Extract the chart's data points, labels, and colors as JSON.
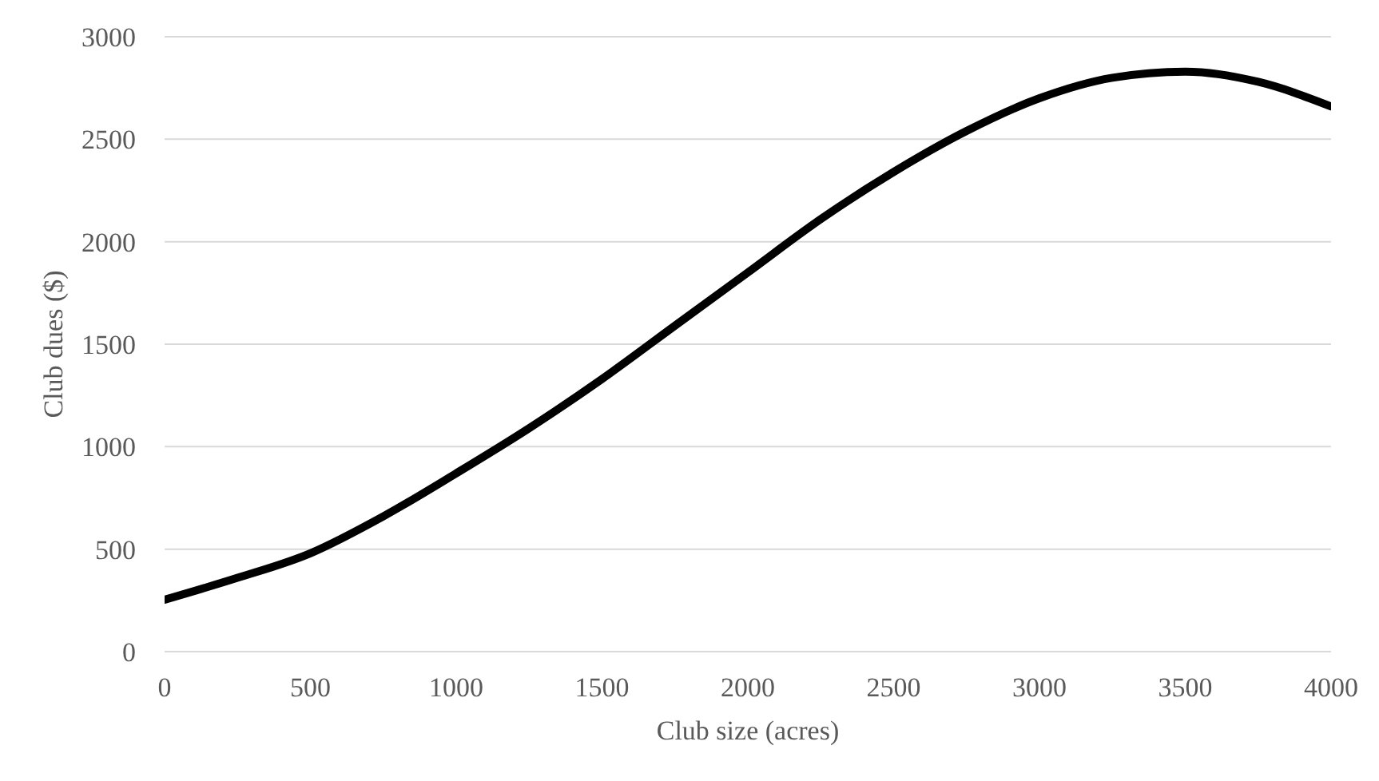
{
  "chart_data": {
    "type": "line",
    "xlabel": "Club size (acres)",
    "ylabel": "Club dues ($)",
    "x": [
      0,
      250,
      500,
      750,
      1000,
      1250,
      1500,
      1750,
      2000,
      2250,
      2500,
      2750,
      3000,
      3250,
      3500,
      3750,
      4000
    ],
    "series": [
      {
        "color": "#000000",
        "values": [
          253,
          360,
          480,
          660,
          870,
          1090,
          1330,
          1590,
          1850,
          2110,
          2340,
          2540,
          2700,
          2800,
          2830,
          2780,
          2660
        ]
      }
    ],
    "xlim": [
      0,
      4000
    ],
    "xticks": [
      0,
      500,
      1000,
      1500,
      2000,
      2500,
      3000,
      3500,
      4000
    ],
    "ylim": [
      0,
      3000
    ],
    "yticks": [
      0,
      500,
      1000,
      1500,
      2000,
      2500,
      3000
    ],
    "grid": "y",
    "legend": false,
    "marker": "none",
    "line_style": "solid"
  }
}
